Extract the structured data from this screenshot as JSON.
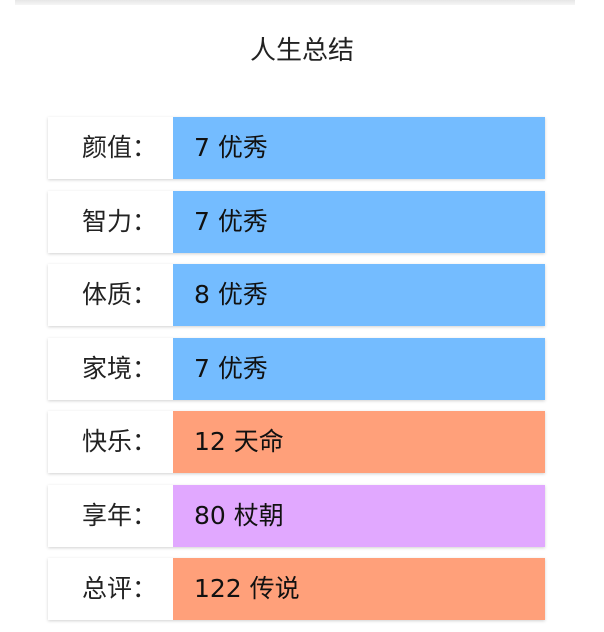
{
  "title": "人生总结",
  "colors": {
    "excellent": "#74bcff",
    "fate": "#ffa07a",
    "longevity": "#e1a8ff"
  },
  "rows": [
    {
      "label": "颜值：",
      "value": "7 优秀",
      "color": "#74bcff"
    },
    {
      "label": "智力：",
      "value": "7 优秀",
      "color": "#74bcff"
    },
    {
      "label": "体质：",
      "value": "8 优秀",
      "color": "#74bcff"
    },
    {
      "label": "家境：",
      "value": "7 优秀",
      "color": "#74bcff"
    },
    {
      "label": "快乐：",
      "value": "12 天命",
      "color": "#ffa07a"
    },
    {
      "label": "享年：",
      "value": "80 杖朝",
      "color": "#e1a8ff"
    },
    {
      "label": "总评：",
      "value": "122 传说",
      "color": "#ffa07a"
    }
  ]
}
